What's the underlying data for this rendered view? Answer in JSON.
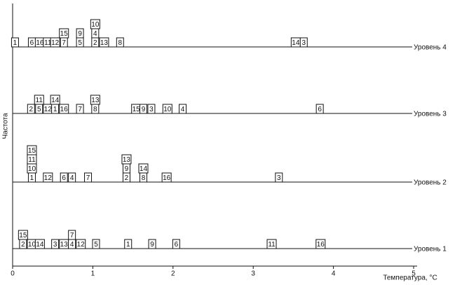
{
  "chart_data": {
    "type": "dotplot",
    "x_label": "Температура, °С",
    "y_label": "Частота",
    "xlim": [
      0,
      5
    ],
    "xticks": [
      0,
      1,
      2,
      3,
      4,
      5
    ],
    "color": "#111111",
    "series": [
      {
        "name": "Уровень 1",
        "labels": [
          2,
          15,
          10,
          14,
          3,
          13,
          4,
          7,
          12,
          5,
          1,
          9,
          6,
          11,
          16
        ],
        "x": [
          0.13,
          0.13,
          0.24,
          0.34,
          0.53,
          0.64,
          0.74,
          0.74,
          0.85,
          1.04,
          1.44,
          1.74,
          2.04,
          3.23,
          3.84
        ]
      },
      {
        "name": "Уровень 2",
        "labels": [
          1,
          10,
          11,
          15,
          12,
          6,
          4,
          7,
          2,
          9,
          13,
          8,
          14,
          16,
          3
        ],
        "x": [
          0.24,
          0.24,
          0.24,
          0.24,
          0.44,
          0.64,
          0.74,
          0.94,
          1.42,
          1.42,
          1.42,
          1.63,
          1.63,
          1.92,
          3.32
        ]
      },
      {
        "name": "Уровень 3",
        "labels": [
          2,
          5,
          11,
          12,
          1,
          14,
          16,
          7,
          8,
          13,
          15,
          9,
          3,
          10,
          4,
          6
        ],
        "x": [
          0.23,
          0.33,
          0.33,
          0.44,
          0.53,
          0.53,
          0.64,
          0.84,
          1.03,
          1.03,
          1.54,
          1.63,
          1.73,
          1.93,
          2.12,
          3.83
        ]
      },
      {
        "name": "Уровень 4",
        "labels": [
          1,
          6,
          16,
          11,
          12,
          7,
          15,
          5,
          9,
          2,
          4,
          10,
          13,
          8,
          14,
          3
        ],
        "x": [
          0.03,
          0.24,
          0.34,
          0.44,
          0.53,
          0.64,
          0.64,
          0.84,
          0.84,
          1.03,
          1.03,
          1.03,
          1.14,
          1.34,
          3.53,
          3.63
        ]
      }
    ]
  }
}
